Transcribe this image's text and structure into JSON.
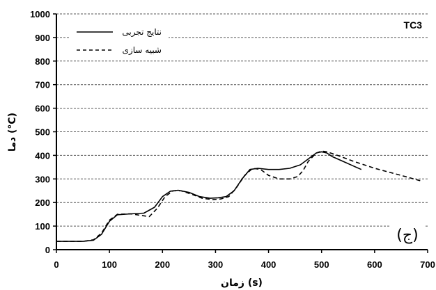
{
  "chart_data": {
    "type": "line",
    "title": "",
    "tag": "TC3",
    "panel_label": "(ج)",
    "xlabel": "زمان (s)",
    "ylabel": "دما (°C)",
    "xlim": [
      0,
      700
    ],
    "ylim": [
      0,
      1000
    ],
    "xticks": [
      0,
      100,
      200,
      300,
      400,
      500,
      600,
      700
    ],
    "yticks": [
      0,
      100,
      200,
      300,
      400,
      500,
      600,
      700,
      800,
      900,
      1000
    ],
    "grid": "horizontal dashed",
    "legend_position": "top-left",
    "series": [
      {
        "name": "نتایج تجربی",
        "style": "solid",
        "color": "#000000",
        "x": [
          0,
          50,
          70,
          85,
          100,
          115,
          140,
          165,
          185,
          200,
          215,
          230,
          250,
          270,
          290,
          305,
          320,
          335,
          350,
          365,
          380,
          400,
          420,
          440,
          460,
          475,
          490,
          500,
          510,
          520,
          540,
          560,
          575
        ],
        "y": [
          35,
          35,
          40,
          65,
          120,
          148,
          152,
          155,
          180,
          225,
          248,
          252,
          243,
          225,
          218,
          220,
          225,
          250,
          300,
          340,
          345,
          340,
          340,
          345,
          360,
          385,
          410,
          415,
          410,
          395,
          375,
          355,
          340
        ]
      },
      {
        "name": "شبیه سازی",
        "style": "dashed",
        "color": "#000000",
        "x": [
          0,
          50,
          70,
          85,
          100,
          115,
          140,
          160,
          175,
          190,
          205,
          220,
          235,
          255,
          275,
          295,
          310,
          325,
          340,
          355,
          370,
          385,
          400,
          420,
          440,
          455,
          465,
          475,
          490,
          500,
          510,
          530,
          560,
          600,
          650,
          690
        ],
        "y": [
          35,
          35,
          42,
          70,
          125,
          150,
          152,
          145,
          140,
          175,
          225,
          250,
          250,
          235,
          218,
          212,
          215,
          225,
          265,
          315,
          345,
          340,
          315,
          300,
          300,
          310,
          335,
          375,
          410,
          418,
          415,
          400,
          375,
          345,
          315,
          290
        ]
      }
    ]
  }
}
